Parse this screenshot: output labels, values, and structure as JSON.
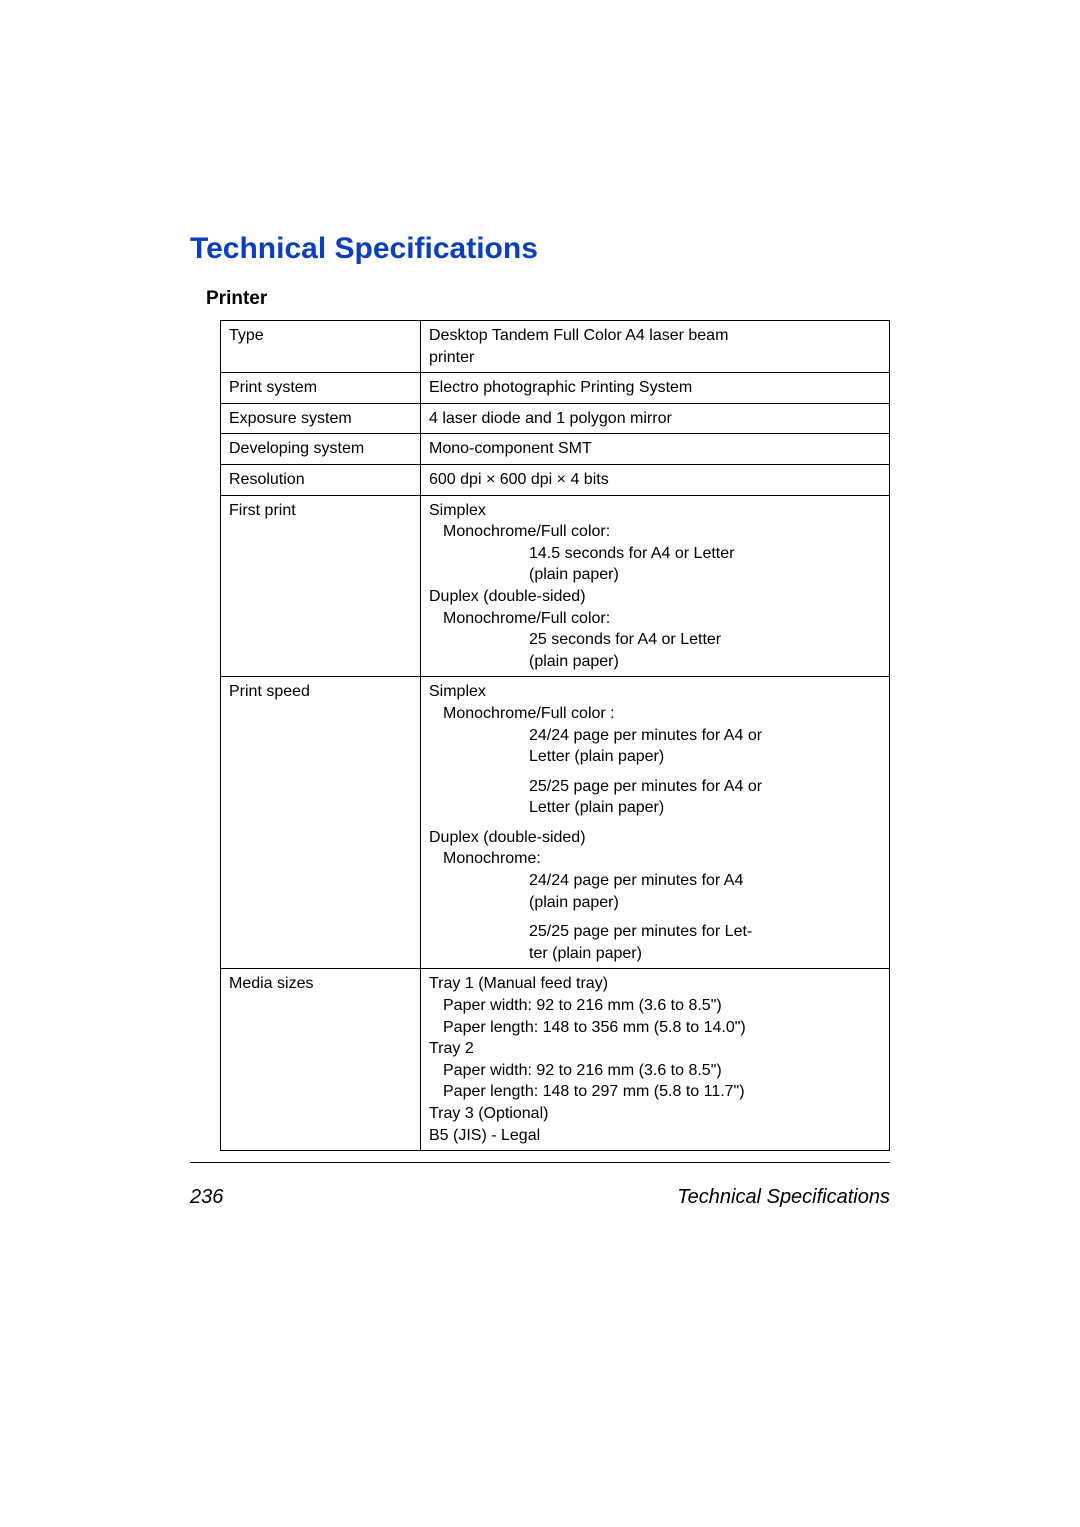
{
  "heading": "Technical Specifications",
  "subheading": "Printer",
  "colors": {
    "heading_color": "#0b3fbf",
    "text_color": "#000000",
    "background": "#ffffff",
    "border_color": "#000000"
  },
  "typography": {
    "heading_fontsize_pt": 22,
    "subheading_fontsize_pt": 14,
    "body_fontsize_pt": 12,
    "footer_fontsize_pt": 15,
    "font_family": "Arial"
  },
  "table": {
    "rows": [
      {
        "label": "Type",
        "value_lines": [
          {
            "text": "Desktop Tandem Full Color A4 laser beam",
            "indent": 0
          },
          {
            "text": "printer",
            "indent": 0
          }
        ]
      },
      {
        "label": "Print system",
        "value_lines": [
          {
            "text": "Electro photographic Printing System",
            "indent": 0
          }
        ]
      },
      {
        "label": "Exposure system",
        "value_lines": [
          {
            "text": "4 laser diode and 1 polygon mirror",
            "indent": 0
          }
        ]
      },
      {
        "label": "Developing system",
        "value_lines": [
          {
            "text": "Mono-component SMT",
            "indent": 0
          }
        ]
      },
      {
        "label": "Resolution",
        "value_lines": [
          {
            "text": "600 dpi × 600 dpi × 4 bits",
            "indent": 0
          }
        ]
      },
      {
        "label": "First print",
        "value_lines": [
          {
            "text": "Simplex",
            "indent": 0
          },
          {
            "text": "Monochrome/Full color:",
            "indent": 1
          },
          {
            "text": "14.5 seconds for A4 or Letter",
            "indent": 2
          },
          {
            "text": "(plain paper)",
            "indent": 2
          },
          {
            "text": "Duplex (double-sided)",
            "indent": 0
          },
          {
            "text": "Monochrome/Full color:",
            "indent": 1
          },
          {
            "text": "25 seconds for A4 or Letter",
            "indent": 2
          },
          {
            "text": "(plain paper)",
            "indent": 2
          }
        ]
      },
      {
        "label": "Print speed",
        "value_lines": [
          {
            "text": "Simplex",
            "indent": 0
          },
          {
            "text": "Monochrome/Full color :",
            "indent": 1
          },
          {
            "text": "24/24 page per minutes for A4 or",
            "indent": 2
          },
          {
            "text": "Letter (plain paper)",
            "indent": 2
          },
          {
            "gap": true
          },
          {
            "text": "25/25 page per minutes for A4 or",
            "indent": 2
          },
          {
            "text": "Letter (plain paper)",
            "indent": 2
          },
          {
            "gap": true
          },
          {
            "text": "Duplex (double-sided)",
            "indent": 0
          },
          {
            "text": "Monochrome:",
            "indent": 1
          },
          {
            "text": "24/24 page per minutes for A4",
            "indent": 2
          },
          {
            "text": "(plain paper)",
            "indent": 2
          },
          {
            "gap": true
          },
          {
            "text": "25/25 page per minutes for Let-",
            "indent": 2
          },
          {
            "text": "ter (plain paper)",
            "indent": 2
          }
        ]
      },
      {
        "label": "Media sizes",
        "value_lines": [
          {
            "text": "Tray 1 (Manual feed tray)",
            "indent": 0
          },
          {
            "text": "Paper width:   92 to 216 mm (3.6 to 8.5\")",
            "indent": 1
          },
          {
            "text": "Paper length: 148 to 356 mm (5.8 to 14.0\")",
            "indent": 1
          },
          {
            "text": "Tray 2",
            "indent": 0
          },
          {
            "text": "Paper width: 92 to 216 mm (3.6 to 8.5\")",
            "indent": 1
          },
          {
            "text": "Paper length: 148 to 297 mm (5.8 to 11.7\")",
            "indent": 1
          },
          {
            "text": "Tray 3 (Optional)",
            "indent": 0
          },
          {
            "text": "B5 (JIS) - Legal",
            "indent": 0
          }
        ]
      }
    ]
  },
  "footer": {
    "page_number": "236",
    "title": "Technical Specifications"
  }
}
